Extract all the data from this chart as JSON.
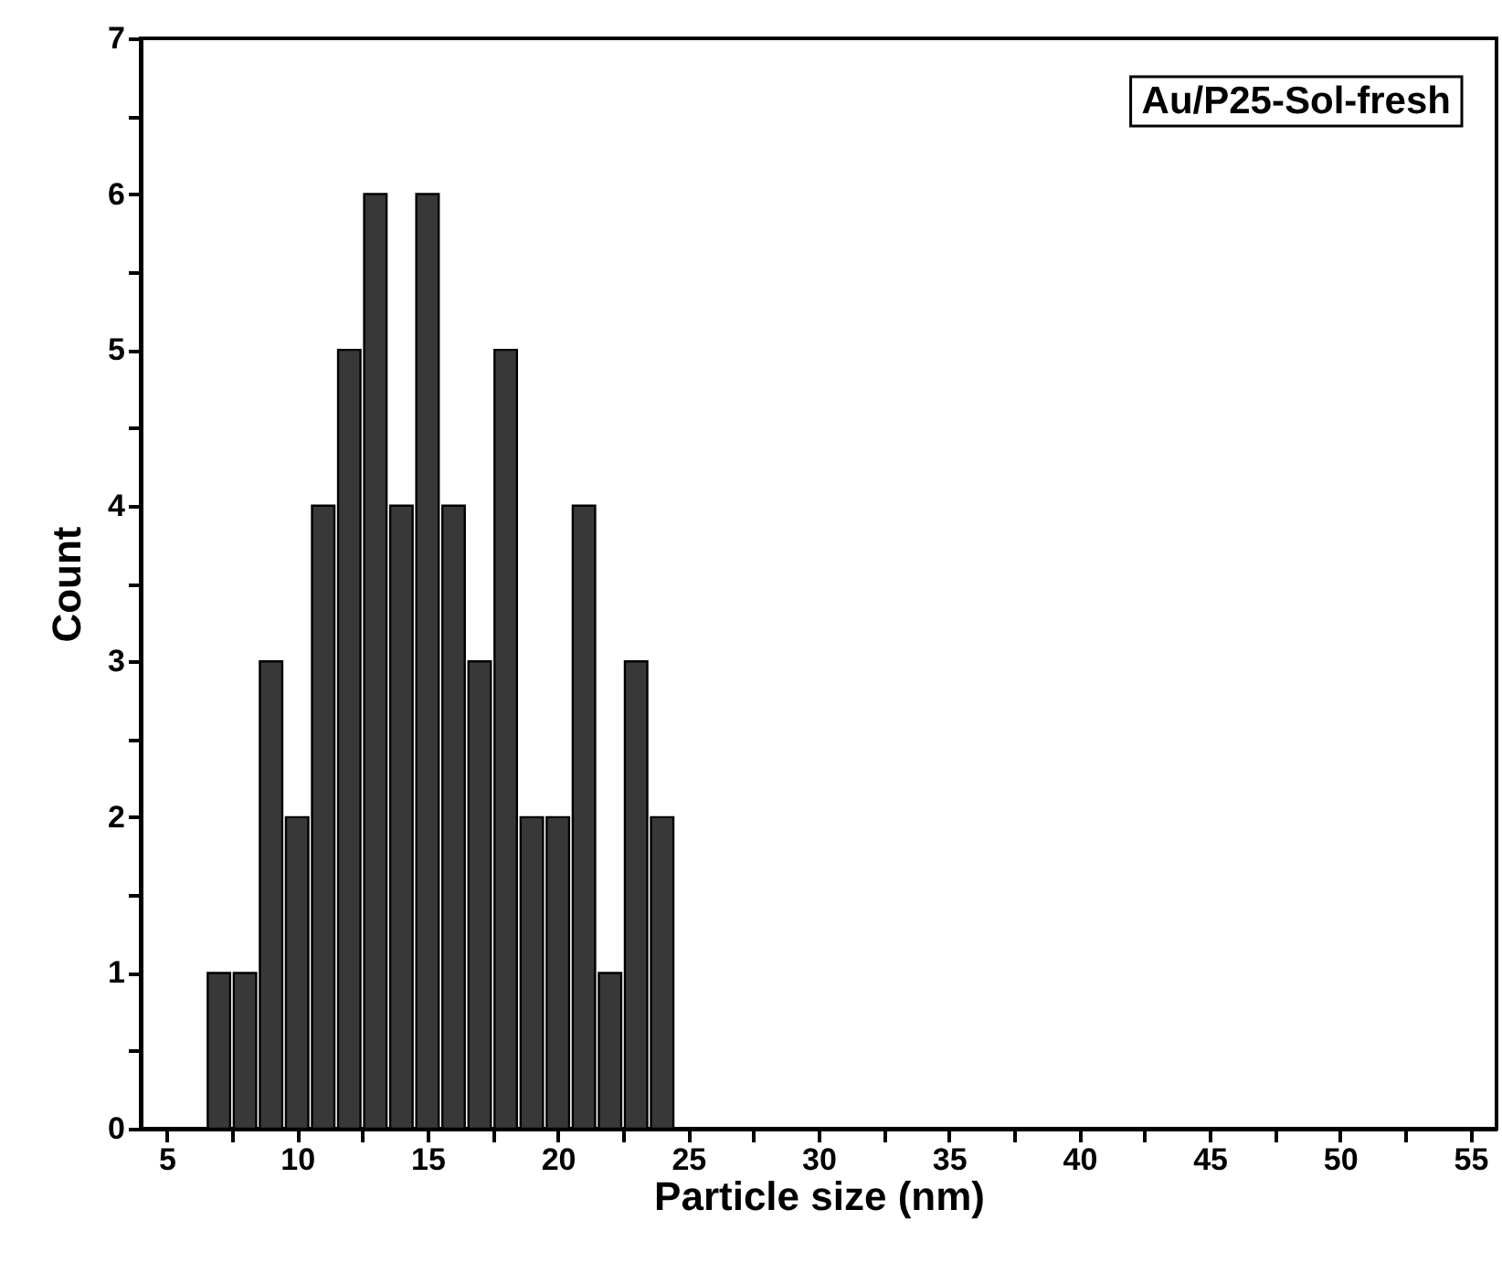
{
  "chart_data": {
    "type": "histogram",
    "xlabel": "Particle size (nm)",
    "ylabel": "Count",
    "bins": [
      6.5,
      7.5,
      8.5,
      9.5,
      10.5,
      11.5,
      12.5,
      13.5,
      14.5,
      15.5,
      16.5,
      17.5,
      18.5,
      19.5,
      20.5,
      21.5,
      22.5,
      23.5,
      24.5
    ],
    "values": [
      1,
      1,
      3,
      2,
      4,
      5,
      6,
      4,
      6,
      4,
      3,
      5,
      2,
      2,
      4,
      1,
      3,
      2
    ],
    "color": "#383838",
    "xlim": [
      4,
      56
    ],
    "xticks": [
      5,
      {
        "value": 7.5,
        "label": null
      },
      10,
      {
        "value": 12.5,
        "label": null
      },
      15,
      {
        "value": 17.5,
        "label": null
      },
      20,
      {
        "value": 22.5,
        "label": null
      },
      25,
      {
        "value": 27.5,
        "label": null
      },
      30,
      {
        "value": 32.5,
        "label": null
      },
      35,
      {
        "value": 37.5,
        "label": null
      },
      40,
      {
        "value": 42.5,
        "label": null
      },
      45,
      {
        "value": 47.5,
        "label": null
      },
      50,
      {
        "value": 52.5,
        "label": null
      },
      55
    ],
    "ylim": [
      0,
      7
    ],
    "yticks": [
      0,
      {
        "value": 0.5,
        "label": null
      },
      1,
      {
        "value": 1.5,
        "label": null
      },
      2,
      {
        "value": 2.5,
        "label": null
      },
      3,
      {
        "value": 3.5,
        "label": null
      },
      4,
      {
        "value": 4.5,
        "label": null
      },
      5,
      {
        "value": 5.5,
        "label": null
      },
      6,
      {
        "value": 6.5,
        "label": null
      },
      7
    ],
    "grid": false,
    "annotations": [
      "Au/P25-Sol-fresh"
    ]
  }
}
